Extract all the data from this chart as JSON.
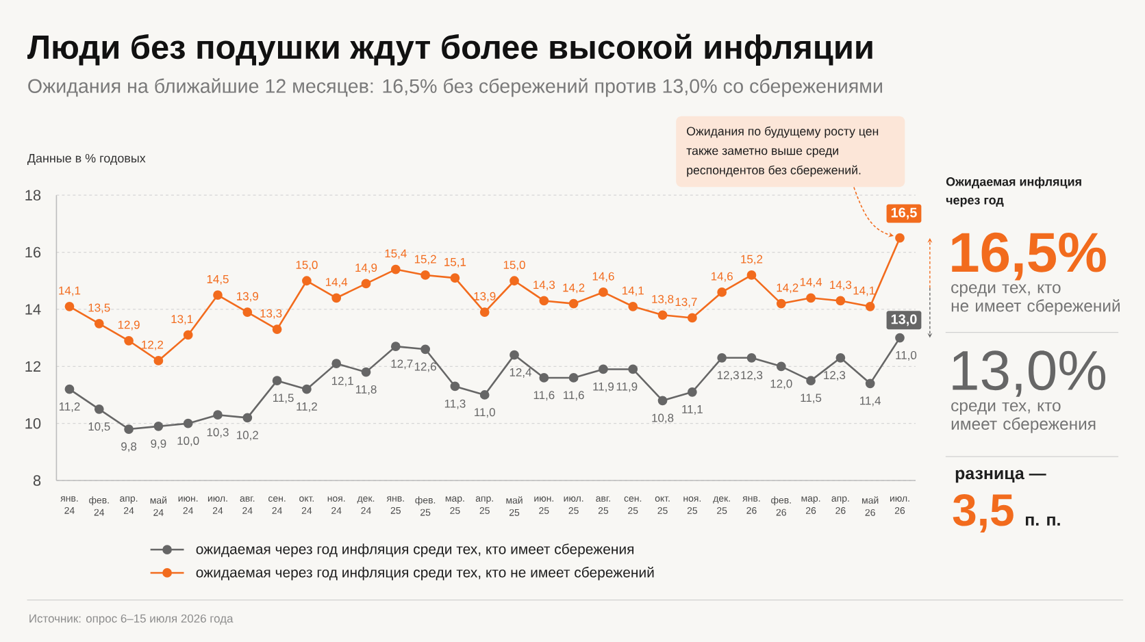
{
  "chart_data": [
    {
      "type": "line",
      "title": "Люди без подушки ждут более высокой инфляции",
      "subtitle": "Ожидания на ближайшие 12 месяцев: 16,5% без сбережений против 13,0% со сбережениями",
      "ylabel": "Данные в % годовых",
      "categories": [
        "янв. 24",
        "фев. 24",
        "апр. 24",
        "май 24",
        "июн. 24",
        "июл. 24",
        "авг. 24",
        "сен. 24",
        "окт. 24",
        "ноя. 24",
        "дек. 24",
        "янв. 25",
        "фев. 25",
        "мар. 25",
        "апр. 25",
        "май 25",
        "июн. 25",
        "июл. 25",
        "авг. 25",
        "сен. 25",
        "окт. 25",
        "ноя. 25",
        "дек. 25",
        "янв. 26",
        "фев. 26",
        "мар. 26",
        "апр. 26",
        "май 26",
        "июл. 26"
      ],
      "series": [
        {
          "name": "ожидаемая через год инфляция среди тех, кто имеет сбережения",
          "color": "#666666",
          "values": [
            11.2,
            10.5,
            9.8,
            9.9,
            10.0,
            10.3,
            10.2,
            11.5,
            11.2,
            12.1,
            11.8,
            12.7,
            12.6,
            11.3,
            11.0,
            12.4,
            11.6,
            11.6,
            11.9,
            11.9,
            10.8,
            11.1,
            12.3,
            12.3,
            12.0,
            11.5,
            12.3,
            11.4,
            13.0
          ],
          "value_labels": [
            "11,2",
            "10,5",
            "9,8",
            "9,9",
            "10,0",
            "10,3",
            "10,2",
            "11,5",
            "11,2",
            "12,1",
            "11,8",
            "12,7",
            "12,6",
            "11,3",
            "11,0",
            "12,4",
            "11,6",
            "11,6",
            "11,9",
            "11,9",
            "10,8",
            "11,1",
            "12,3",
            "12,3",
            "12,0",
            "11,5",
            "12,3",
            "11,4",
            "13,0"
          ]
        },
        {
          "name": "ожидаемая через год инфляция среди тех, кто не имеет сбережений",
          "color": "#f26b1d",
          "values": [
            14.1,
            13.5,
            12.9,
            12.2,
            13.1,
            14.5,
            13.9,
            13.3,
            15.0,
            14.4,
            14.9,
            15.4,
            15.2,
            15.1,
            13.9,
            15.0,
            14.3,
            14.2,
            14.6,
            14.1,
            13.8,
            13.7,
            14.6,
            15.2,
            14.2,
            14.4,
            14.3,
            14.1,
            16.5
          ],
          "value_labels": [
            "14,1",
            "13,5",
            "12,9",
            "12,2",
            "13,1",
            "14,5",
            "13,9",
            "13,3",
            "15,0",
            "14,4",
            "14,9",
            "15,4",
            "15,2",
            "15,1",
            "13,9",
            "15,0",
            "14,3",
            "14,2",
            "14,6",
            "14,1",
            "13,8",
            "13,7",
            "14,6",
            "15,2",
            "14,2",
            "14,4",
            "14,3",
            "14,1",
            "16,5"
          ]
        }
      ],
      "ylim": [
        8,
        18
      ],
      "yticks": [
        8,
        10,
        12,
        14,
        16,
        18
      ],
      "grid": "y",
      "legend": "bottom",
      "marker": "circle",
      "line_style": "solid",
      "annotations": [
        "Ожидания по будущему росту цен также заметно выше среди респондентов без сбережений.",
        "11,0",
        "Источник: опрос 6–15 июля 2026 года"
      ]
    },
    {
      "type": "other",
      "title": "Ожидаемая инфляция через год",
      "annotations": [
        "16,5%",
        "среди тех, кто не имеет сбережений",
        "13,0%",
        "среди тех, кто имеет сбережения",
        "разница —",
        "3,5",
        "п. п."
      ]
    }
  ]
}
